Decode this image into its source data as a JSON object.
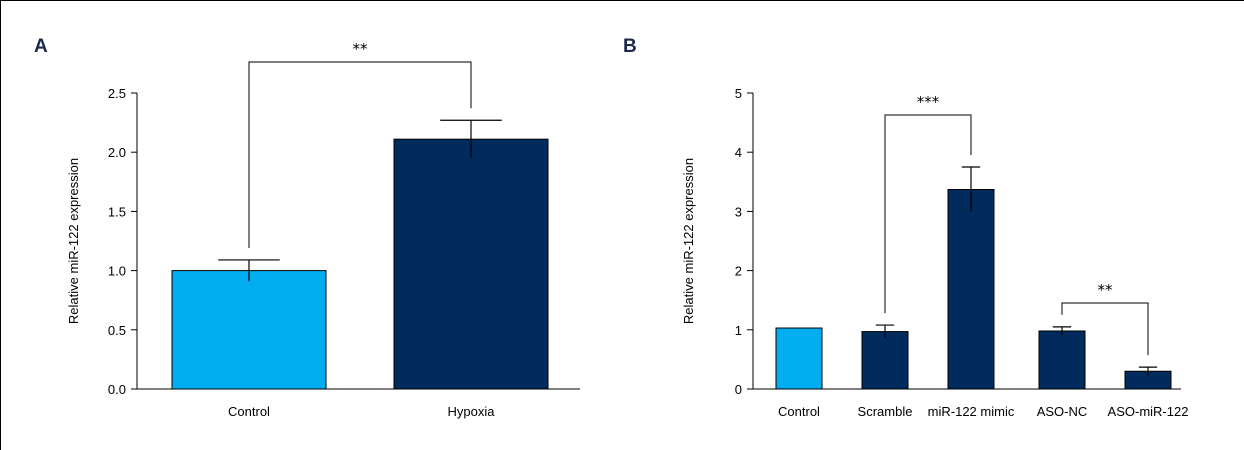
{
  "colors": {
    "control": "#00aeef",
    "treated": "#002b5c",
    "line": "#000000"
  },
  "chart_data": [
    {
      "panel": "A",
      "type": "bar",
      "ylabel": "Relative miR-122 expression",
      "xlabel": "",
      "ylim": [
        0,
        2.5
      ],
      "yticks": [
        "0.0",
        "0.5",
        "1.0",
        "1.5",
        "2.0",
        "2.5"
      ],
      "categories": [
        "Control",
        "Hypoxia"
      ],
      "values": [
        1.0,
        2.11
      ],
      "errors": [
        0.09,
        0.16
      ],
      "bar_colors": [
        "control",
        "treated"
      ],
      "significance": [
        {
          "from": 0,
          "to": 1,
          "label": "**"
        }
      ],
      "grid": false,
      "legend": "none"
    },
    {
      "panel": "B",
      "type": "bar",
      "ylabel": "Relative miR-122 expression",
      "xlabel": "",
      "ylim": [
        0,
        5
      ],
      "yticks": [
        "0",
        "1",
        "2",
        "3",
        "4",
        "5"
      ],
      "categories": [
        "Control",
        "Scramble",
        "miR-122 mimic",
        "ASO-NC",
        "ASO-miR-122"
      ],
      "values": [
        1.03,
        0.97,
        3.37,
        0.98,
        0.3
      ],
      "errors": [
        0,
        0.11,
        0.38,
        0.07,
        0.07
      ],
      "bar_colors": [
        "control",
        "treated",
        "treated",
        "treated",
        "treated"
      ],
      "significance": [
        {
          "from": 1,
          "to": 2,
          "label": "***"
        },
        {
          "from": 3,
          "to": 4,
          "label": "**"
        }
      ],
      "grid": false,
      "legend": "none"
    }
  ]
}
